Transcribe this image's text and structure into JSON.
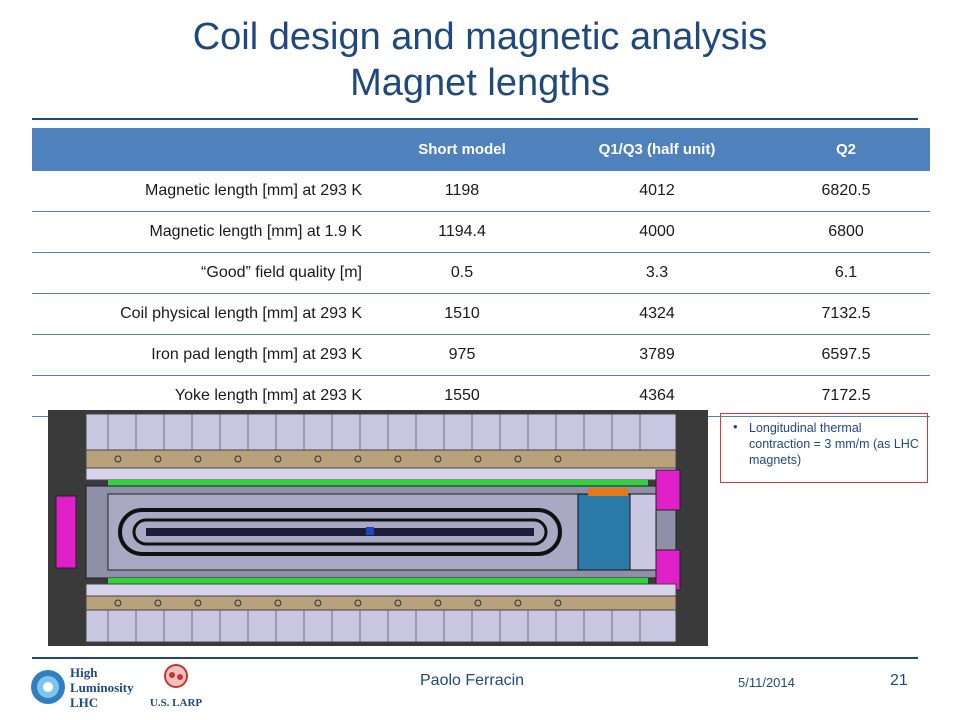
{
  "title": {
    "line1": "Coil design and magnetic analysis",
    "line2": "Magnet lengths"
  },
  "table": {
    "headers": [
      "",
      "Short model",
      "Q1/Q3 (half unit)",
      "Q2"
    ],
    "rows": [
      {
        "label": "Magnetic length [mm] at 293 K",
        "values": [
          "1198",
          "4012",
          "6820.5"
        ]
      },
      {
        "label": "Magnetic length [mm] at 1.9 K",
        "values": [
          "1194.4",
          "4000",
          "6800"
        ]
      },
      {
        "label": "“Good” field quality [m]",
        "values": [
          "0.5",
          "3.3",
          "6.1"
        ]
      },
      {
        "label": "Coil physical length [mm] at 293 K",
        "values": [
          "1510",
          "4324",
          "7132.5"
        ]
      },
      {
        "label": "Iron pad length [mm] at 293 K",
        "values": [
          "975",
          "3789",
          "6597.5"
        ]
      },
      {
        "label": "Yoke length [mm] at 293 K",
        "values": [
          "1550",
          "4364",
          "7172.5"
        ]
      }
    ]
  },
  "note": {
    "bullet": "•",
    "text": "Longitudinal thermal contraction = 3 mm/m (as LHC magnets)"
  },
  "footer": {
    "author": "Paolo Ferracin",
    "date": "5/11/2014",
    "page": "21"
  },
  "logos": {
    "hl": [
      "High",
      "Luminosity",
      "LHC"
    ],
    "larp": "U.S. LARP"
  },
  "colors": {
    "title": "#1f497d",
    "table_header": "#4f81bd",
    "note_border": "#e0353b"
  }
}
